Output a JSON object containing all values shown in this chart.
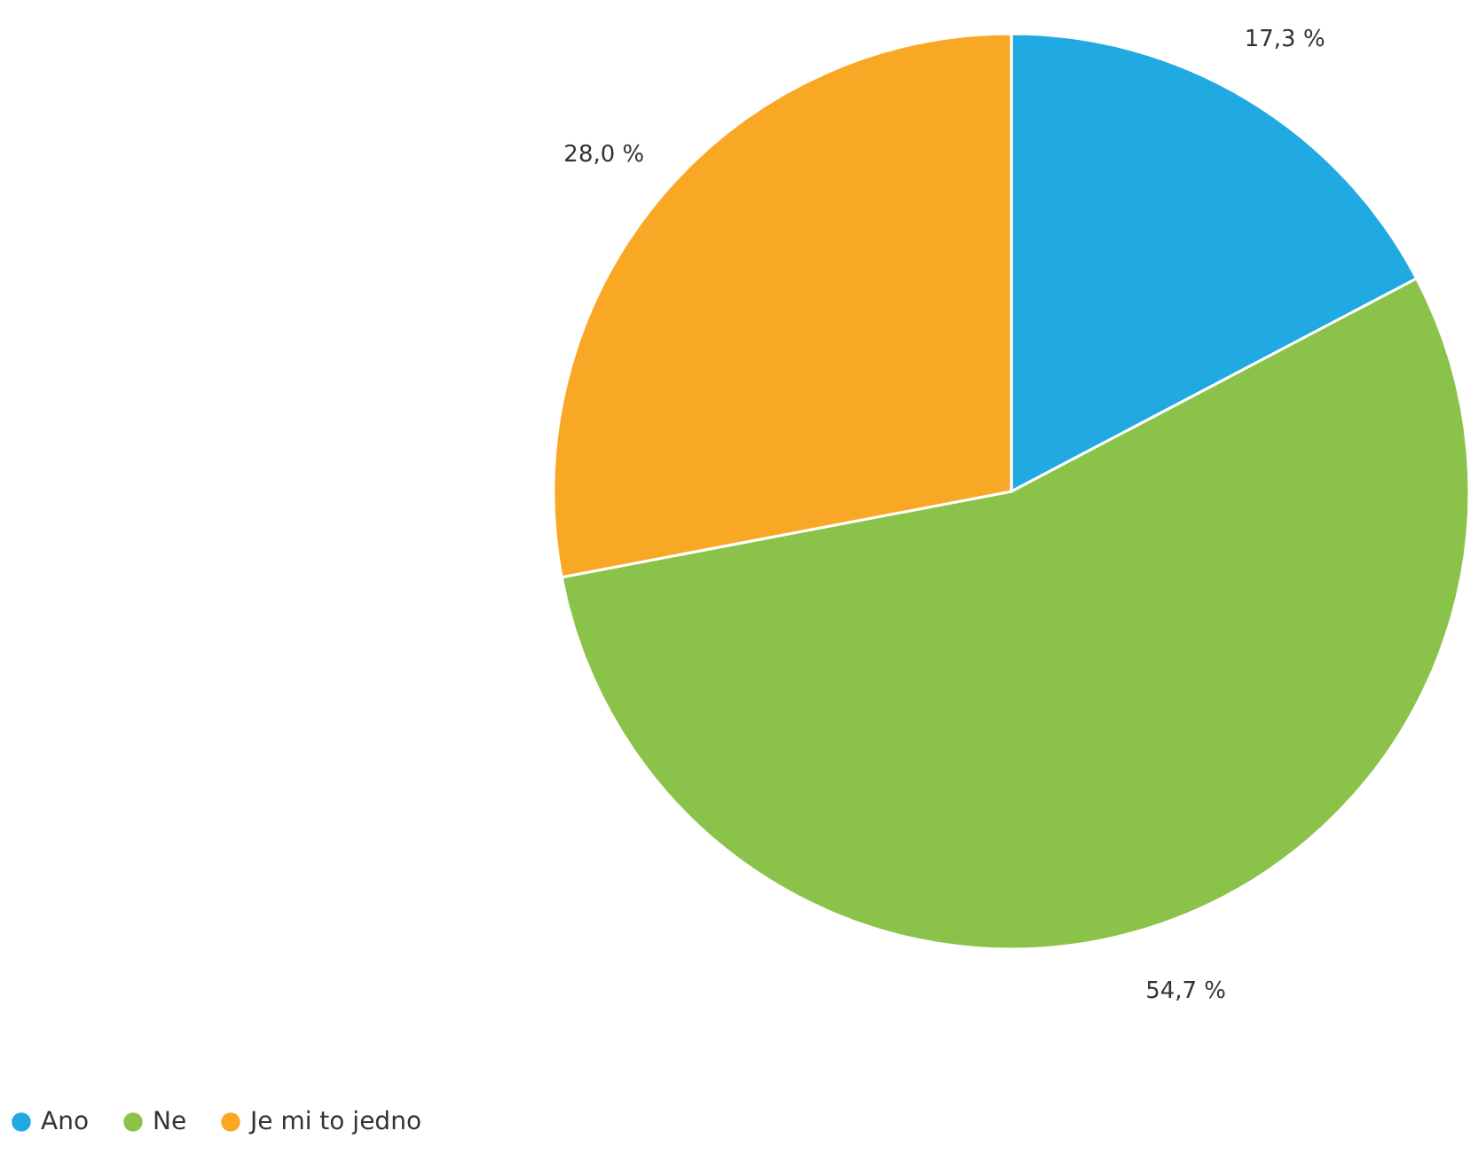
{
  "chart_data": {
    "type": "pie",
    "categories": [
      "Ano",
      "Ne",
      "Je mi to jedno"
    ],
    "values": [
      17.3,
      54.7,
      28.0
    ],
    "colors": [
      "#21a9e1",
      "#8bc34a",
      "#f9a825"
    ],
    "value_labels": [
      "17,3 %",
      "54,7 %",
      "28,0 %"
    ],
    "legend": "bottom left"
  }
}
